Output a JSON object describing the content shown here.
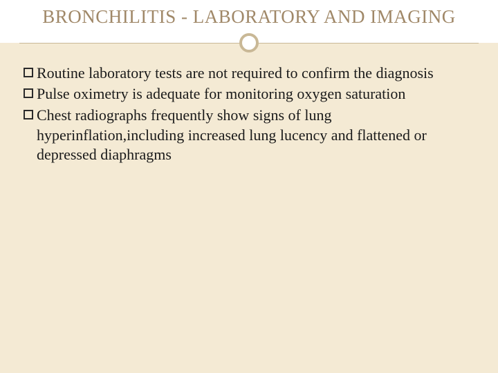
{
  "title": "BRONCHILITIS - LABORATORY AND IMAGING",
  "bullets": [
    "Routine laboratory tests are not required to confirm the diagnosis",
    "Pulse oximetry is adequate for monitoring oxygen saturation",
    "Chest radiographs frequently show signs of lung hyperinflation,including increased lung lucency and flattened or depressed diaphragms"
  ],
  "colors": {
    "background": "#f4ead4",
    "header_bg": "#ffffff",
    "title_color": "#a08868",
    "divider_color": "#c9b896",
    "text_color": "#1a1a1a",
    "bullet_border": "#2a2a2a"
  },
  "typography": {
    "title_fontsize": 27,
    "body_fontsize": 22,
    "font_family": "Georgia serif"
  }
}
